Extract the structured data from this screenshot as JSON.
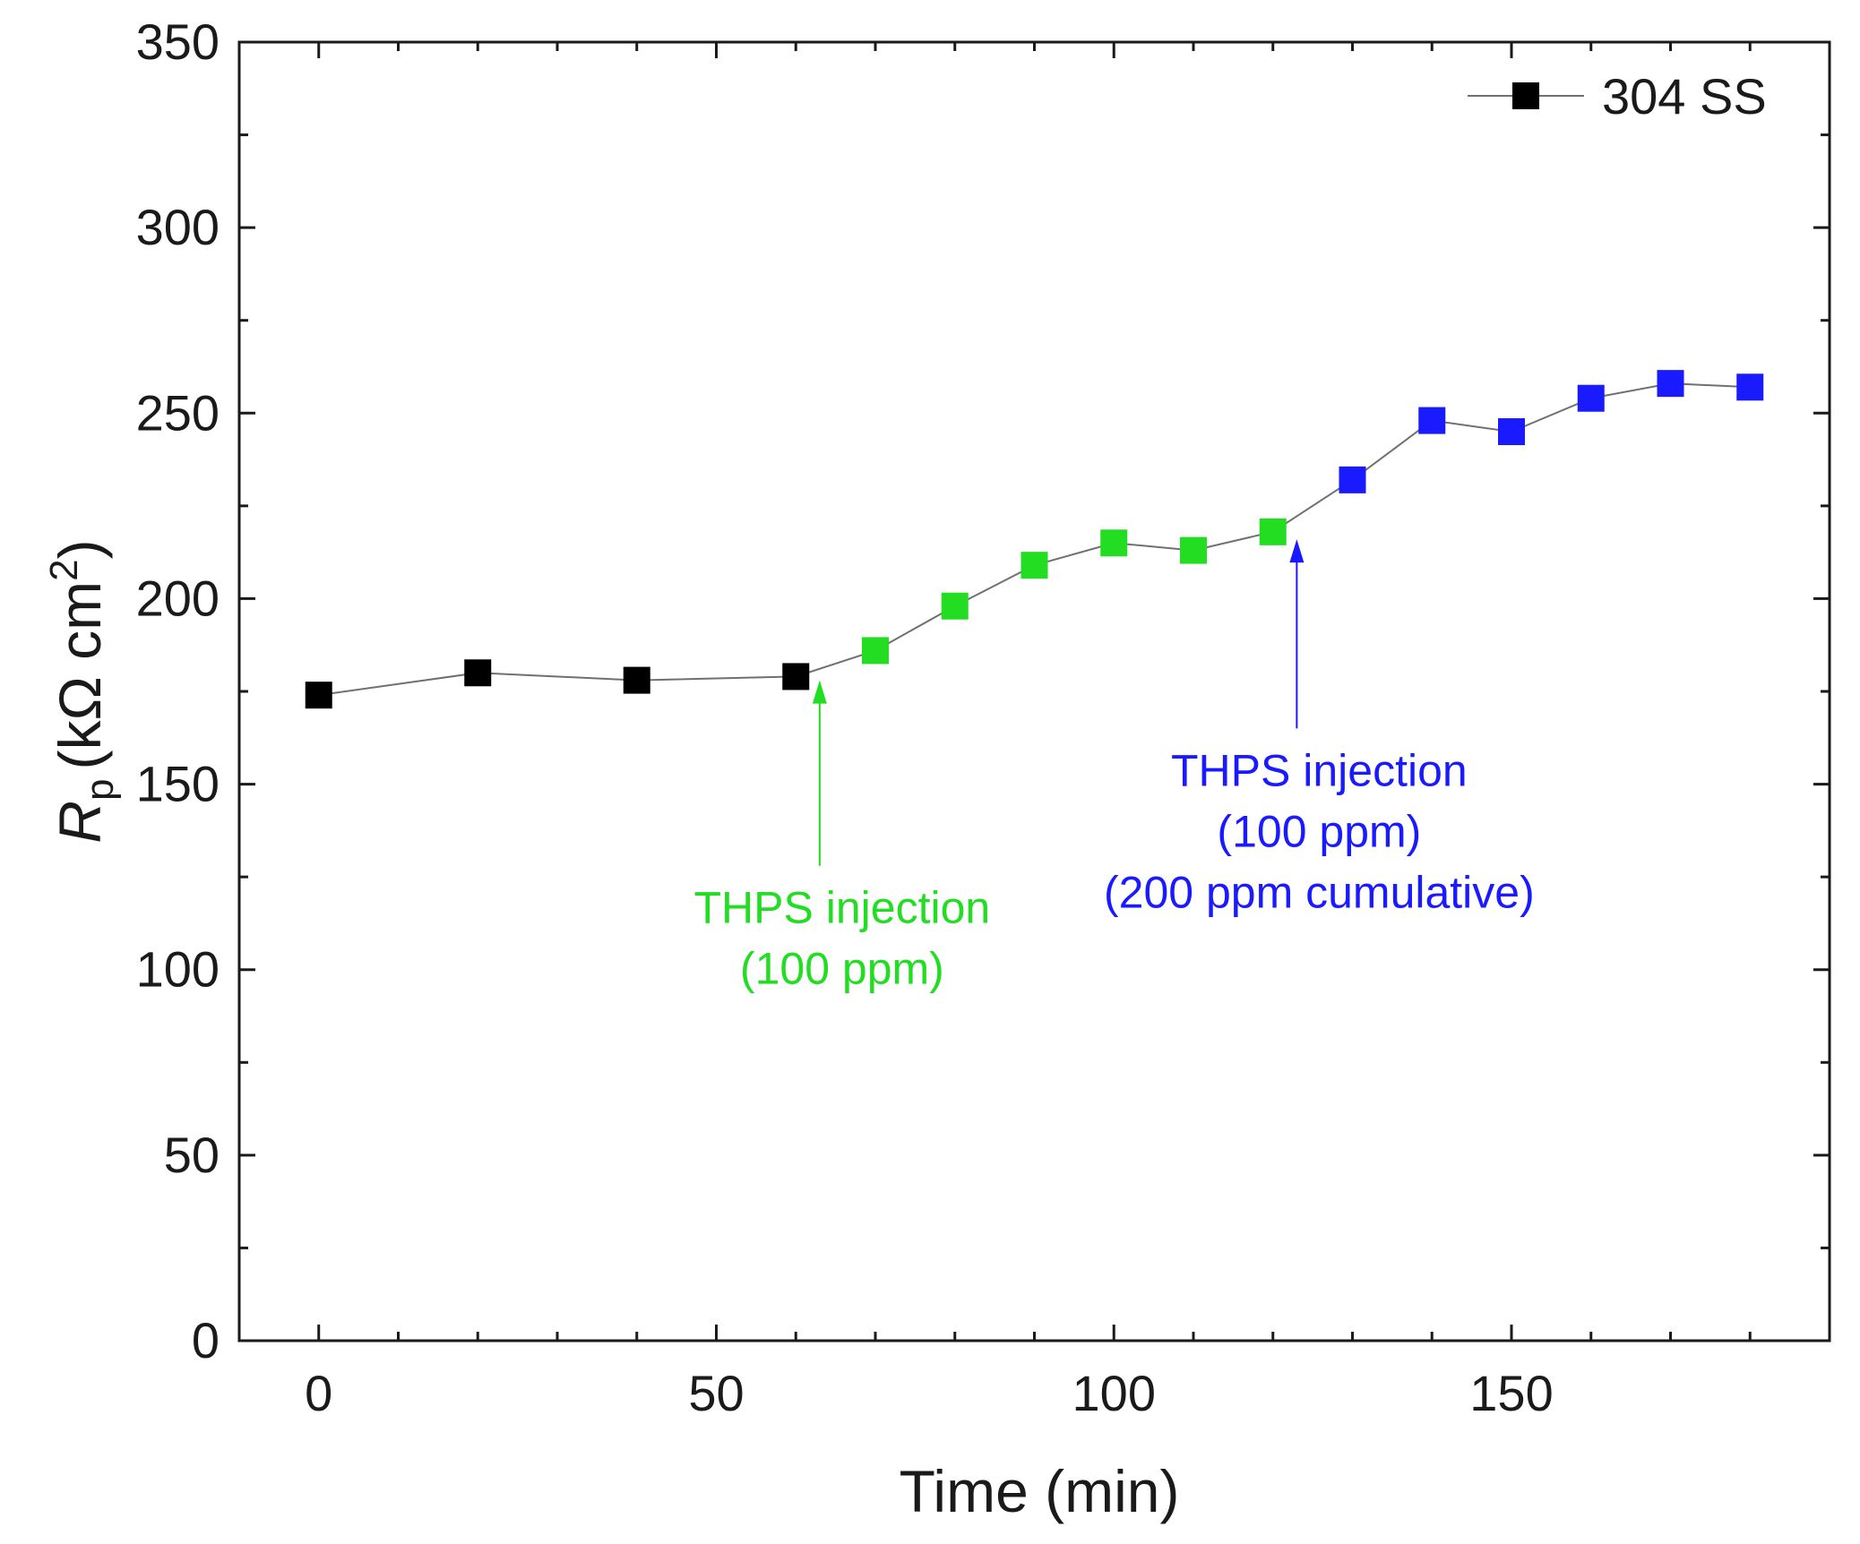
{
  "chart_data": {
    "type": "scatter",
    "xlabel": "Time (min)",
    "ylabel": {
      "symbol": "R",
      "subscript": "p",
      "unit_prefix": "(kΩ cm",
      "superscript": "2",
      "unit_suffix": ")"
    },
    "xlim": [
      -10,
      190
    ],
    "ylim": [
      0,
      350
    ],
    "x_ticks": [
      0,
      50,
      100,
      150
    ],
    "y_ticks": [
      0,
      50,
      100,
      150,
      200,
      250,
      300,
      350
    ],
    "grid": false,
    "legend": {
      "position": "top-right",
      "entries": [
        "304 SS"
      ]
    },
    "series": [
      {
        "name": "304 SS",
        "line_color": "#707070",
        "points": [
          {
            "x": 0,
            "y": 174,
            "color": "#000000"
          },
          {
            "x": 20,
            "y": 180,
            "color": "#000000"
          },
          {
            "x": 40,
            "y": 178,
            "color": "#000000"
          },
          {
            "x": 60,
            "y": 179,
            "color": "#000000"
          },
          {
            "x": 70,
            "y": 186,
            "color": "#22dd22"
          },
          {
            "x": 80,
            "y": 198,
            "color": "#22dd22"
          },
          {
            "x": 90,
            "y": 209,
            "color": "#22dd22"
          },
          {
            "x": 100,
            "y": 215,
            "color": "#22dd22"
          },
          {
            "x": 110,
            "y": 213,
            "color": "#22dd22"
          },
          {
            "x": 120,
            "y": 218,
            "color": "#22dd22"
          },
          {
            "x": 130,
            "y": 232,
            "color": "#1a1aff"
          },
          {
            "x": 140,
            "y": 248,
            "color": "#1a1aff"
          },
          {
            "x": 150,
            "y": 245,
            "color": "#1a1aff"
          },
          {
            "x": 160,
            "y": 254,
            "color": "#1a1aff"
          },
          {
            "x": 170,
            "y": 258,
            "color": "#1a1aff"
          },
          {
            "x": 180,
            "y": 257,
            "color": "#1a1aff"
          }
        ]
      }
    ],
    "annotations": [
      {
        "lines": [
          "THPS injection",
          "(100 ppm)"
        ],
        "color": "#22dd22",
        "arrow_x": 63,
        "arrow_tip_y": 178,
        "arrow_tail_y": 128
      },
      {
        "lines": [
          "THPS injection",
          "(100 ppm)",
          "(200 ppm cumulative)"
        ],
        "color": "#1a1aff",
        "arrow_x": 123,
        "arrow_tip_y": 216,
        "arrow_tail_y": 165
      }
    ]
  }
}
